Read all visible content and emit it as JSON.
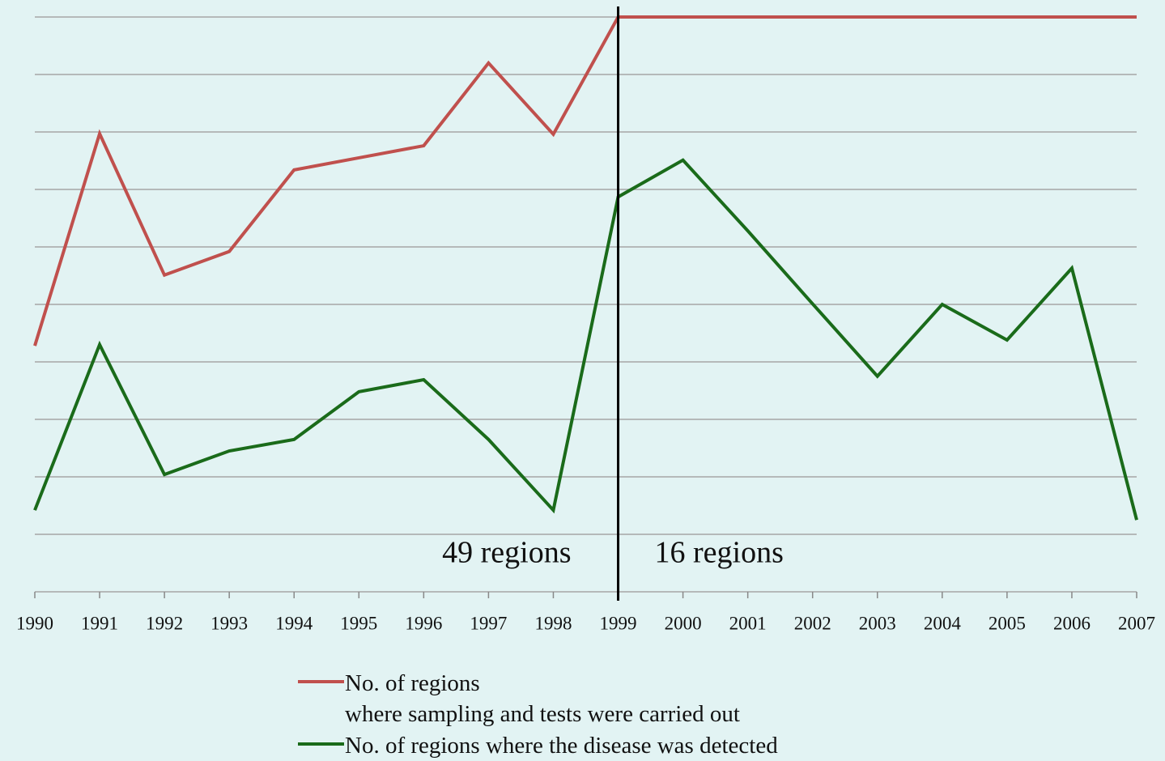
{
  "chart_data": {
    "type": "line",
    "categories": [
      "1990",
      "1991",
      "1992",
      "1993",
      "1994",
      "1995",
      "1996",
      "1997",
      "1998",
      "1999",
      "2000",
      "2001",
      "2002",
      "2003",
      "2004",
      "2005",
      "2006",
      "2007"
    ],
    "series": [
      {
        "name": "No. of regions\nwhere sampling and tests were carried out",
        "color": "#c0504d",
        "values": [
          42.8,
          79.7,
          55.1,
          59.2,
          73.4,
          75.5,
          77.6,
          92,
          79.6,
          100,
          100,
          100,
          100,
          100,
          100,
          100,
          100,
          100
        ]
      },
      {
        "name": "No. of regions where the disease was detected",
        "color": "#1a6b1a",
        "values": [
          14.2,
          43,
          20.4,
          24.5,
          26.5,
          34.8,
          36.9,
          26.5,
          14.2,
          68.7,
          75.1,
          62.8,
          50.1,
          37.5,
          50,
          43.8,
          56.3,
          12.5
        ]
      }
    ],
    "annotations": [
      "49 regions",
      "16 regions"
    ],
    "ylim": [
      0,
      100
    ],
    "yticks": [
      0,
      10,
      20,
      30,
      40,
      50,
      60,
      70,
      80,
      90,
      100
    ],
    "grid": true
  }
}
